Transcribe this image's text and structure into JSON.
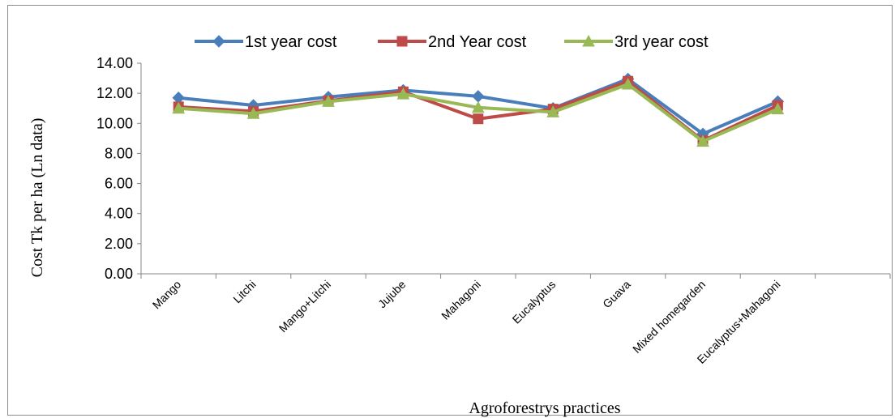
{
  "chart_data": {
    "type": "line",
    "categories": [
      "Mango",
      "Litchi",
      "Mango+Litchi",
      "Jujube",
      "Mahagoni",
      "Eucalyptus",
      "Guava",
      "Mixed homegarden",
      "Eucalyptus+Mahagoni"
    ],
    "series": [
      {
        "name": "1st year cost",
        "color": "#4a7ebb",
        "marker": "diamond",
        "values": [
          11.7,
          11.2,
          11.75,
          12.2,
          11.8,
          11.0,
          12.95,
          9.3,
          11.45
        ]
      },
      {
        "name": "2nd Year cost",
        "color": "#be4b48",
        "marker": "square",
        "values": [
          11.1,
          10.8,
          11.5,
          12.1,
          10.3,
          10.95,
          12.8,
          8.85,
          11.2
        ]
      },
      {
        "name": "3rd year cost",
        "color": "#98b954",
        "marker": "triangle",
        "values": [
          11.0,
          10.65,
          11.45,
          11.95,
          11.05,
          10.75,
          12.6,
          8.8,
          10.95
        ]
      }
    ],
    "y_ticks": [
      "0.00",
      "2.00",
      "4.00",
      "6.00",
      "8.00",
      "10.00",
      "12.00",
      "14.00"
    ],
    "ylim": [
      0,
      14
    ],
    "xlabel": "Agroforestrys practices",
    "ylabel": "Cost Tk per ha (Ln data)",
    "legend_position": "top-center",
    "grid": false
  }
}
